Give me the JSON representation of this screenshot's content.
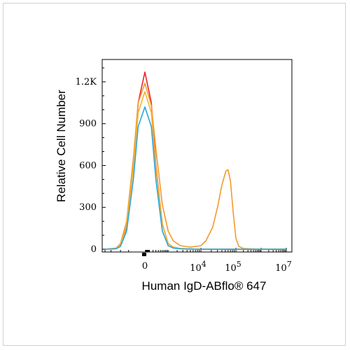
{
  "chart_data": {
    "type": "line",
    "title": "",
    "xlabel": "Human IgD-ABflo® 647",
    "ylabel": "Relative Cell Number",
    "x_scale": "biexponential",
    "ylim": [
      0,
      1300
    ],
    "y_ticks": [
      {
        "value": 0,
        "label": "0"
      },
      {
        "value": 300,
        "label": "300"
      },
      {
        "value": 600,
        "label": "600"
      },
      {
        "value": 900,
        "label": "900"
      },
      {
        "value": 1200,
        "label": "1.2K"
      }
    ],
    "x_ticks": [
      {
        "value": 0,
        "label": "0"
      },
      {
        "value": 10000,
        "label": "10",
        "exponent": "4"
      },
      {
        "value": 100000,
        "label": "10",
        "exponent": "5"
      },
      {
        "value": 10000000,
        "label": "10",
        "exponent": "7"
      }
    ],
    "grid": false,
    "legend": "none",
    "series": [
      {
        "color": "#e8232a",
        "x": [
          -3000,
          -1400,
          -1000,
          -600,
          -300,
          -150,
          0,
          150,
          300,
          600,
          1000,
          1500,
          2500,
          5000,
          10000,
          100000,
          10000000
        ],
        "y": [
          0,
          5,
          30,
          160,
          600,
          1050,
          1270,
          1050,
          600,
          180,
          40,
          15,
          5,
          2,
          0,
          0,
          0
        ]
      },
      {
        "color": "#f39a2b",
        "x": [
          -3000,
          -1400,
          -1000,
          -600,
          -300,
          -150,
          0,
          150,
          300,
          600,
          1000,
          1500,
          2500,
          5000,
          10000,
          14000,
          22000,
          30000,
          40000,
          52000,
          60000,
          70000,
          85000,
          100000,
          130000,
          200000,
          1000000,
          10000000
        ],
        "y": [
          0,
          8,
          40,
          200,
          650,
          1050,
          1190,
          1030,
          720,
          320,
          130,
          60,
          25,
          15,
          25,
          60,
          160,
          300,
          460,
          560,
          570,
          490,
          250,
          80,
          20,
          5,
          0,
          0
        ]
      },
      {
        "color": "#f6b132",
        "x": [
          -3000,
          -1400,
          -1000,
          -600,
          -300,
          -150,
          0,
          150,
          300,
          600,
          1000,
          1500,
          2500,
          5000,
          10000,
          100000,
          10000000
        ],
        "y": [
          0,
          5,
          30,
          170,
          580,
          980,
          1130,
          980,
          580,
          180,
          40,
          15,
          5,
          2,
          0,
          0,
          0
        ]
      },
      {
        "color": "#2aa8d8",
        "x": [
          -3000,
          -1400,
          -1000,
          -600,
          -300,
          -150,
          0,
          150,
          300,
          600,
          1000,
          1500,
          2500,
          5000,
          10000,
          100000,
          10000000
        ],
        "y": [
          0,
          3,
          20,
          130,
          500,
          880,
          1020,
          880,
          500,
          130,
          25,
          8,
          3,
          1,
          0,
          0,
          0
        ]
      }
    ]
  }
}
